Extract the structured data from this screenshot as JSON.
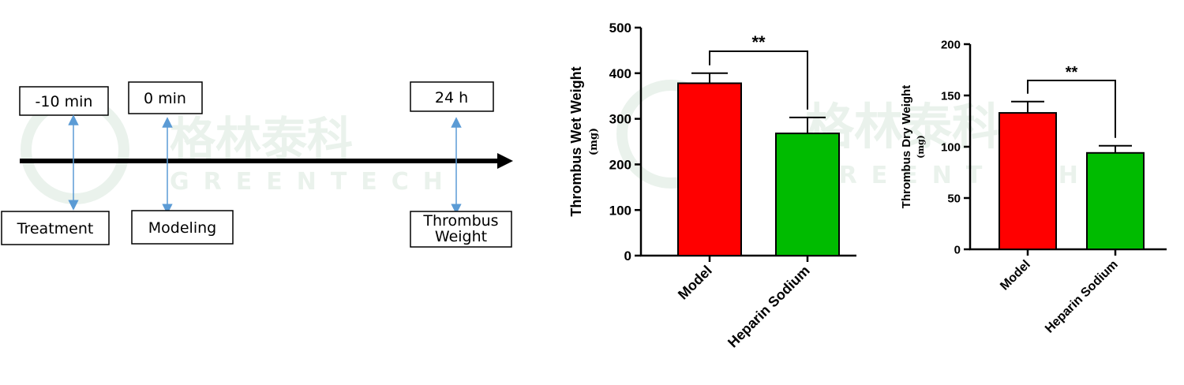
{
  "timeline": {
    "events": [
      {
        "time": "-10 min",
        "label": "Treatment"
      },
      {
        "time": "0 min",
        "label": "Modeling"
      },
      {
        "time": "24 h",
        "label": "Thrombus Weight"
      }
    ]
  },
  "watermark": {
    "cn": "格林泰科",
    "en": "GREENTECH"
  },
  "colors": {
    "model": "#ff0000",
    "heparin": "#00bb00",
    "arrow": "#5b9bd5",
    "watermark": "#e8f1ea"
  },
  "chart_data": [
    {
      "type": "bar",
      "title": "",
      "ylabel": "Thrombus Wet Weight",
      "yunit": "(mg)",
      "categories": [
        "Model",
        "Heparin Sodium"
      ],
      "values": [
        378,
        268
      ],
      "errors": [
        22,
        35
      ],
      "ylim": [
        0,
        500
      ],
      "yticks": [
        0,
        100,
        200,
        300,
        400,
        500
      ],
      "significance": "**"
    },
    {
      "type": "bar",
      "title": "",
      "ylabel": "Thrombus Dry Weight",
      "yunit": "(mg)",
      "categories": [
        "Model",
        "Heparin Sodium"
      ],
      "values": [
        133,
        94
      ],
      "errors": [
        11,
        7
      ],
      "ylim": [
        0,
        200
      ],
      "yticks": [
        0,
        50,
        100,
        150,
        200
      ],
      "significance": "**"
    }
  ]
}
